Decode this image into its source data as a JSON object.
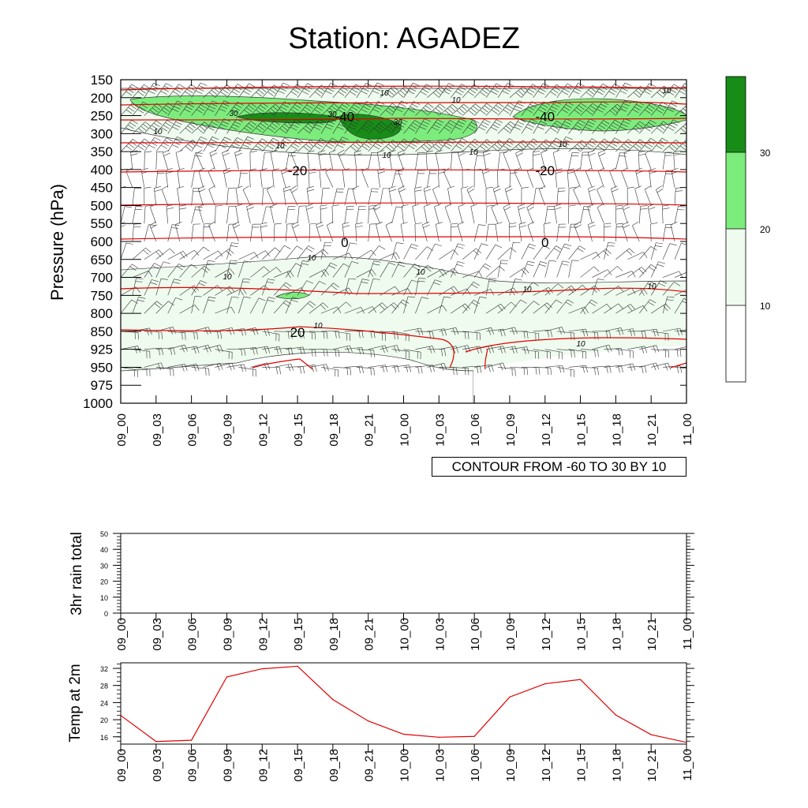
{
  "title": "Station: AGADEZ",
  "contour_note": "CONTOUR FROM -60 TO 30 BY 10",
  "colors": {
    "fill_10": "#eefbee",
    "fill_20": "#7cec7c",
    "fill_30": "#178d17",
    "temperature_line": "#e00000",
    "contour_line": "#3a3a3a"
  },
  "chart_data": [
    {
      "type": "heatmap",
      "ylabel": "Pressure (hPa)",
      "y_ticks": [
        "150",
        "200",
        "250",
        "300",
        "350",
        "400",
        "450",
        "500",
        "550",
        "600",
        "650",
        "700",
        "750",
        "800",
        "850",
        "925",
        "950",
        "975",
        "1000"
      ],
      "x_ticks": [
        "09_00",
        "09_03",
        "09_06",
        "09_09",
        "09_12",
        "09_15",
        "09_18",
        "09_21",
        "10_00",
        "10_03",
        "10_06",
        "10_09",
        "10_12",
        "10_15",
        "10_18",
        "10_21",
        "11_00"
      ],
      "colorbar": {
        "levels": [
          "10",
          "20",
          "30"
        ]
      },
      "temperature_contour_labels": [
        {
          "text": "-40",
          "time": "09_19",
          "pressure": "250"
        },
        {
          "text": "-40",
          "time": "10_12",
          "pressure": "250"
        },
        {
          "text": "-20",
          "time": "09_15",
          "pressure": "400"
        },
        {
          "text": "-20",
          "time": "10_12",
          "pressure": "400"
        },
        {
          "text": "0",
          "time": "09_19",
          "pressure": "600"
        },
        {
          "text": "0",
          "time": "10_12",
          "pressure": "600"
        },
        {
          "text": "20",
          "time": "09_15",
          "pressure": "850"
        }
      ],
      "wind_contour_labels": [
        "10",
        "10",
        "10",
        "10",
        "10",
        "10",
        "10",
        "10",
        "10",
        "10",
        "10",
        "10",
        "10",
        "10",
        "10",
        "30",
        "30",
        "30"
      ]
    },
    {
      "type": "line",
      "ylabel": "3hr rain total",
      "ylim": [
        0,
        50
      ],
      "y_ticks": [
        "0",
        "10",
        "20",
        "30",
        "40",
        "50"
      ],
      "x_ticks": [
        "09_00",
        "09_03",
        "09_06",
        "09_09",
        "09_12",
        "09_15",
        "09_18",
        "09_21",
        "10_00",
        "10_03",
        "10_06",
        "10_09",
        "10_12",
        "10_15",
        "10_18",
        "10_21",
        "11_00"
      ],
      "values": []
    },
    {
      "type": "line",
      "ylabel": "Temp at 2m",
      "ylim": [
        14.3,
        33.3
      ],
      "y_ticks": [
        "16",
        "20",
        "24",
        "28",
        "32"
      ],
      "x_ticks": [
        "09_00",
        "09_03",
        "09_06",
        "09_09",
        "09_12",
        "09_15",
        "09_18",
        "09_21",
        "10_00",
        "10_03",
        "10_06",
        "10_09",
        "10_12",
        "10_15",
        "10_18",
        "10_21",
        "11_00"
      ],
      "values": [
        21.0,
        14.9,
        15.2,
        30.0,
        31.9,
        32.5,
        24.7,
        19.7,
        16.6,
        15.9,
        16.1,
        25.3,
        28.4,
        29.4,
        21.1,
        16.5,
        14.7
      ]
    }
  ]
}
